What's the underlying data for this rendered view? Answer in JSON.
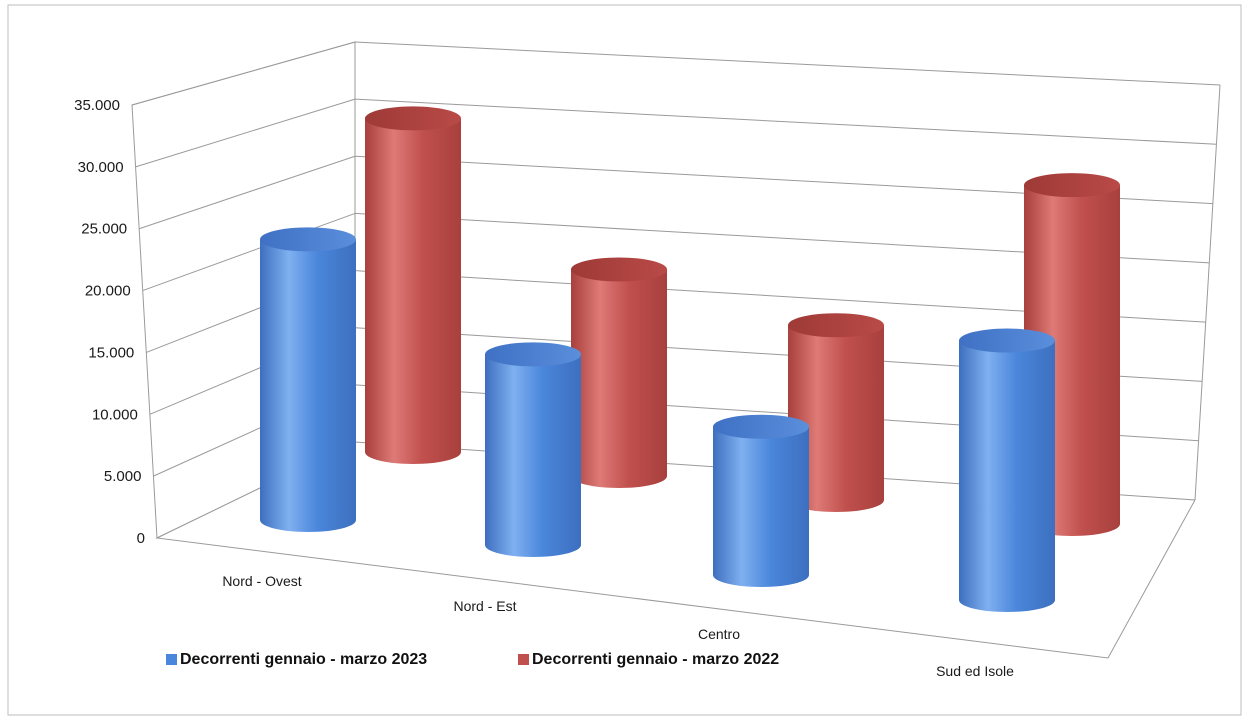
{
  "chart_data": {
    "type": "bar",
    "style": "3d-cylinder",
    "categories": [
      "Nord - Ovest",
      "Nord - Est",
      "Centro",
      "Sud ed Isole"
    ],
    "series": [
      {
        "name": "Decorrenti gennaio - marzo 2023",
        "values": [
          26500,
          18000,
          14000,
          24500
        ],
        "color": "#4A86DB"
      },
      {
        "name": "Decorrenti gennaio - marzo 2022",
        "values": [
          31500,
          19500,
          16500,
          32000
        ],
        "color": "#C0504D"
      }
    ],
    "y_ticks": [
      "0",
      "5.000",
      "10.000",
      "15.000",
      "20.000",
      "25.000",
      "30.000",
      "35.000"
    ],
    "ylim": [
      0,
      35000
    ],
    "grid": true,
    "legend_position": "bottom-left"
  }
}
